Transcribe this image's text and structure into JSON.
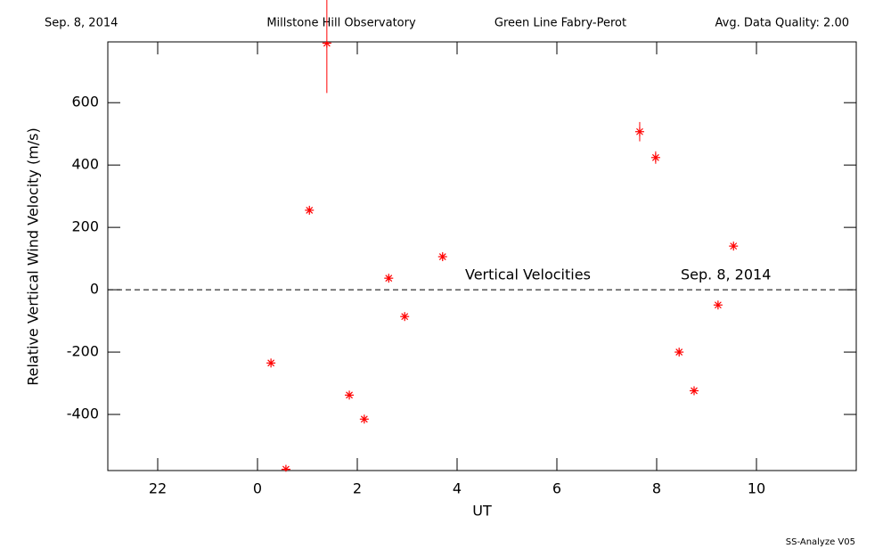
{
  "header": {
    "date": "Sep. 8, 2014",
    "observatory": "Millstone Hill Observatory",
    "instrument": "Green Line Fabry-Perot",
    "quality": "Avg. Data Quality: 2.00"
  },
  "footer": "SS-Analyze V05",
  "chart_data": {
    "type": "scatter",
    "xlabel": "UT",
    "ylabel": "Relative Vertical Wind Velocity (m/s)",
    "annotations": [
      "Vertical Velocities",
      "Sep. 8, 2014"
    ],
    "xlim": [
      -3,
      12
    ],
    "xticks": [
      {
        "value": -2,
        "label": "22"
      },
      0,
      2,
      4,
      6,
      8,
      10
    ],
    "ylim": [
      -580,
      795
    ],
    "yticks": [
      -400,
      -200,
      0,
      200,
      400,
      600
    ],
    "reference_line": 0,
    "series": [
      {
        "name": "Vertical Velocities",
        "color": "#ff0000",
        "x": [
          0.27,
          0.57,
          1.04,
          1.39,
          1.84,
          2.14,
          2.63,
          2.95,
          3.71,
          7.66,
          7.98,
          8.45,
          8.75,
          9.23,
          9.54
        ],
        "values": [
          -235,
          -576,
          255,
          791,
          -338,
          -415,
          37,
          -86,
          106,
          507,
          424,
          -200,
          -324,
          -49,
          140
        ],
        "errors": [
          8,
          8,
          8,
          160,
          8,
          8,
          8,
          8,
          8,
          31,
          20,
          8,
          8,
          8,
          8
        ]
      }
    ]
  }
}
